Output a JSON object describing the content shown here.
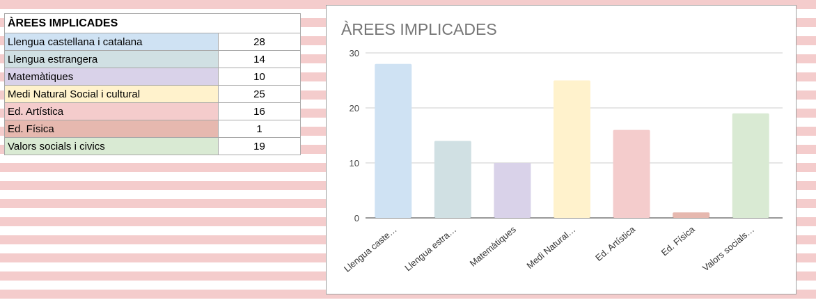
{
  "table": {
    "title": "ÀREES IMPLICADES",
    "rows": [
      {
        "label": "Llengua castellana i catalana",
        "value": "28",
        "color": "#cfe2f3"
      },
      {
        "label": "Llengua estrangera",
        "value": "14",
        "color": "#d0e0e3"
      },
      {
        "label": "Matemàtiques",
        "value": "10",
        "color": "#d9d2e9"
      },
      {
        "label": "Medi Natural Social i cultural",
        "value": "25",
        "color": "#fff2cc"
      },
      {
        "label": "Ed. Artística",
        "value": "16",
        "color": "#f4cccc"
      },
      {
        "label": "Ed. Física",
        "value": "1",
        "color": "#e6b8af"
      },
      {
        "label": "Valors socials i civics",
        "value": "19",
        "color": "#d9ead3"
      }
    ]
  },
  "chart_data": {
    "type": "bar",
    "title": "ÀREES IMPLICADES",
    "categories": [
      "Llengua caste…",
      "Llengua estra…",
      "Matemàtiques",
      "Medi Natural…",
      "Ed. Artística",
      "Ed. Física",
      "Valors socials…"
    ],
    "values": [
      28,
      14,
      10,
      25,
      16,
      1,
      19
    ],
    "colors": [
      "#cfe2f3",
      "#d0e0e3",
      "#d9d2e9",
      "#fff2cc",
      "#f4cccc",
      "#e6b8af",
      "#d9ead3"
    ],
    "yticks": [
      "0",
      "10",
      "20",
      "30"
    ],
    "ylim": [
      0,
      30
    ],
    "grid": true,
    "legend": "none"
  }
}
